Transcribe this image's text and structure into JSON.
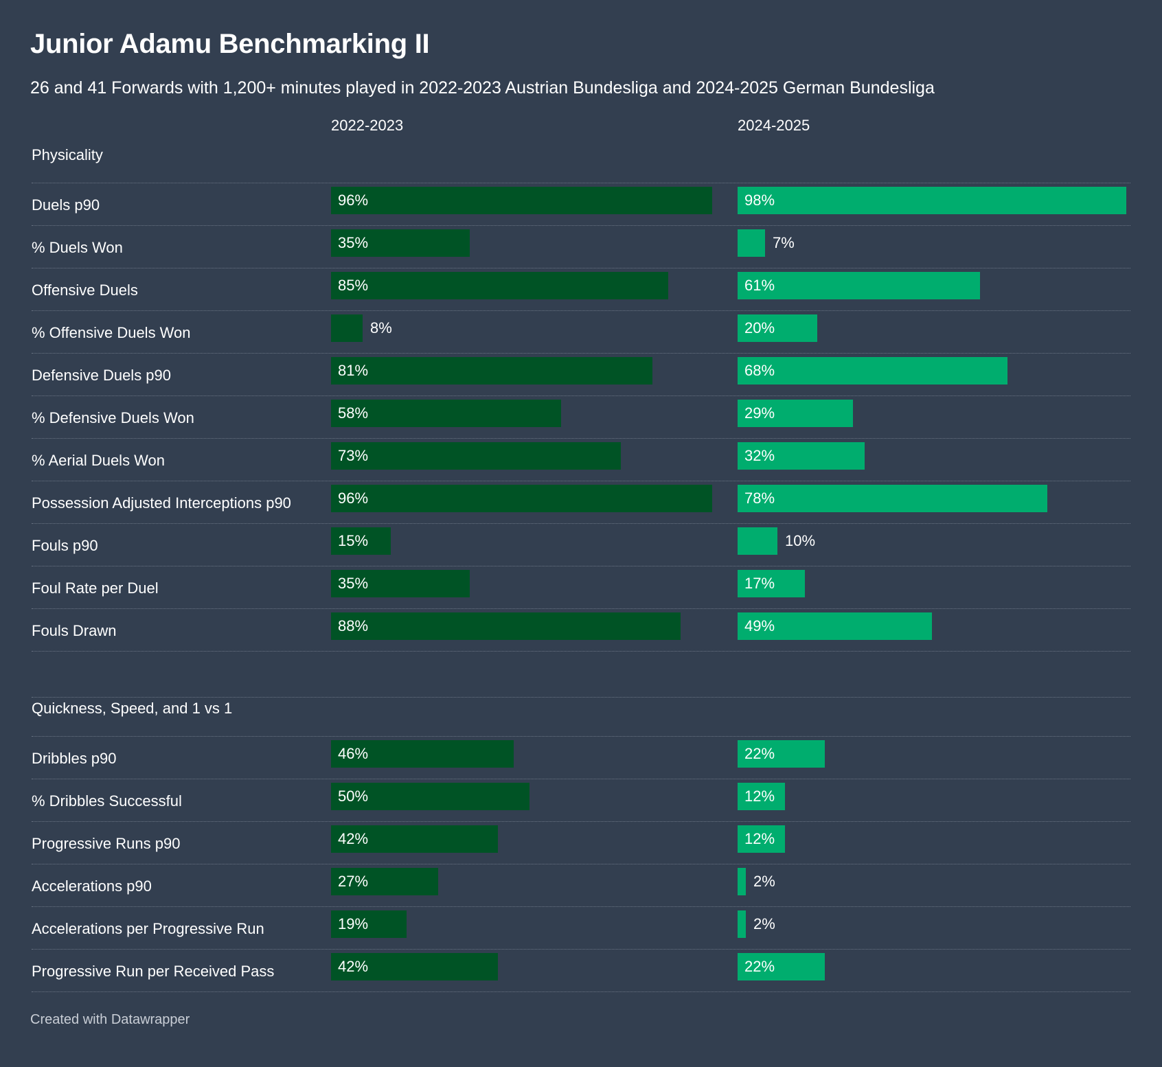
{
  "title": "Junior Adamu Benchmarking II",
  "subtitle": "26 and 41 Forwards with 1,200+ minutes played in 2022-2023 Austrian Bundesliga and 2024-2025 German Bundesliga",
  "footer": "Created with Datawrapper",
  "colors": {
    "background": "#333f50",
    "series_2022": "#005325",
    "series_2024": "#00ad6e"
  },
  "chart_data": {
    "type": "bar",
    "orientation": "horizontal",
    "title": "Junior Adamu Benchmarking II",
    "value_unit": "%",
    "xlim": [
      0,
      100
    ],
    "series_names": [
      "2022-2023",
      "2024-2025"
    ],
    "sections": [
      {
        "name": "Physicality",
        "rows": [
          {
            "label": "Duels p90",
            "values": [
              96,
              98
            ]
          },
          {
            "label": "% Duels Won",
            "values": [
              35,
              7
            ]
          },
          {
            "label": "Offensive Duels",
            "values": [
              85,
              61
            ]
          },
          {
            "label": "% Offensive Duels Won",
            "values": [
              8,
              20
            ]
          },
          {
            "label": "Defensive Duels p90",
            "values": [
              81,
              68
            ]
          },
          {
            "label": "% Defensive Duels Won",
            "values": [
              58,
              29
            ]
          },
          {
            "label": "% Aerial Duels Won",
            "values": [
              73,
              32
            ]
          },
          {
            "label": "Possession Adjusted Interceptions p90",
            "values": [
              96,
              78
            ]
          },
          {
            "label": "Fouls p90",
            "values": [
              15,
              10
            ]
          },
          {
            "label": "Foul Rate per Duel",
            "values": [
              35,
              17
            ]
          },
          {
            "label": "Fouls Drawn",
            "values": [
              88,
              49
            ]
          }
        ]
      },
      {
        "name": "Quickness, Speed, and 1 vs 1",
        "rows": [
          {
            "label": "Dribbles p90",
            "values": [
              46,
              22
            ]
          },
          {
            "label": "% Dribbles Successful",
            "values": [
              50,
              12
            ]
          },
          {
            "label": "Progressive Runs p90",
            "values": [
              42,
              12
            ]
          },
          {
            "label": "Accelerations p90",
            "values": [
              27,
              2
            ]
          },
          {
            "label": "Accelerations per Progressive Run",
            "values": [
              19,
              2
            ]
          },
          {
            "label": "Progressive Run per Received Pass",
            "values": [
              42,
              22
            ]
          }
        ]
      }
    ]
  }
}
